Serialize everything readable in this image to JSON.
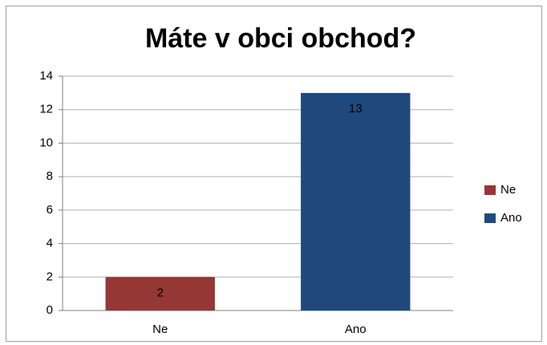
{
  "chart_data": {
    "type": "bar",
    "title": "Máte v obci obchod?",
    "categories": [
      "Ne",
      "Ano"
    ],
    "values": [
      2,
      13
    ],
    "colors": [
      "#953735",
      "#1f497d"
    ],
    "ylim": [
      0,
      14
    ],
    "yticks": [
      0,
      2,
      4,
      6,
      8,
      10,
      12,
      14
    ],
    "grid": true,
    "legend": "right"
  }
}
